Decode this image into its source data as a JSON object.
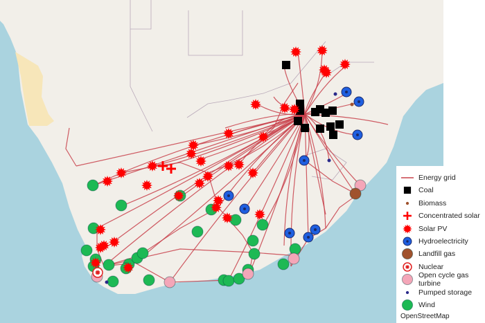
{
  "map": {
    "ocean_color": "#aad3df",
    "land_color": "#f2efe9",
    "desert_color": "#f7e6b9",
    "grid_color": "#c8404a"
  },
  "legend": {
    "items": [
      {
        "label": "Energy grid",
        "icon": "line",
        "color": "#c8404a"
      },
      {
        "label": "Coal",
        "icon": "square",
        "color": "#000000"
      },
      {
        "label": "Biomass",
        "icon": "small-dot",
        "color": "#a0522d"
      },
      {
        "label": "Concentrated solar",
        "icon": "cross",
        "color": "#ff0000"
      },
      {
        "label": "Solar PV",
        "icon": "starburst",
        "color": "#ff0000"
      },
      {
        "label": "Hydroelectricity",
        "icon": "ringed-circle",
        "color": "#1f5fe0"
      },
      {
        "label": "Landfill gas",
        "icon": "circle",
        "color": "#a0522d"
      },
      {
        "label": "Nuclear",
        "icon": "circled-cross",
        "color": "#e02020"
      },
      {
        "label": "Open cycle gas turbine",
        "icon": "circle",
        "color": "#f4a6b8"
      },
      {
        "label": "Pumped storage",
        "icon": "small-dot",
        "color": "#2a2a8a"
      },
      {
        "label": "Wind",
        "icon": "circle",
        "color": "#1db954"
      }
    ],
    "attribution": "OpenStreetMap"
  }
}
